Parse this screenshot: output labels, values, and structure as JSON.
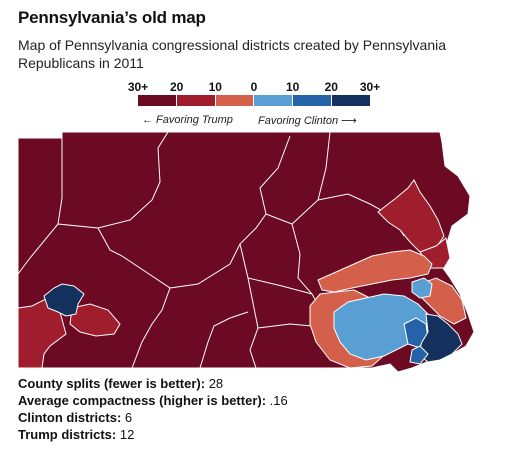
{
  "header": {
    "title": "Pennsylvania’s old map",
    "subtitle": "Map of Pennsylvania congressional districts created by Pennsylvania Republicans in 2011"
  },
  "legend": {
    "ticks": [
      "30+",
      "20",
      "10",
      "0",
      "10",
      "20",
      "30+"
    ],
    "swatches": [
      "#6b0a22",
      "#a01d2e",
      "#d4604b",
      "#5a9fd4",
      "#2563a8",
      "#14305c"
    ],
    "favoring_trump": "← Favoring Trump",
    "favoring_clinton": "Favoring Clinton ⟶"
  },
  "colors": {
    "trump_30plus": "#6b0a22",
    "trump_20": "#a01d2e",
    "trump_10": "#d4604b",
    "clinton_10": "#5a9fd4",
    "clinton_20": "#2563a8",
    "clinton_30plus": "#14305c",
    "boundary": "#ffffff"
  },
  "stats": [
    {
      "label": "County splits (fewer is better):",
      "value": "28"
    },
    {
      "label": "Average compactness (higher is better):",
      "value": ".16"
    },
    {
      "label": "Clinton districts:",
      "value": "6"
    },
    {
      "label": "Trump districts:",
      "value": "12"
    }
  ]
}
